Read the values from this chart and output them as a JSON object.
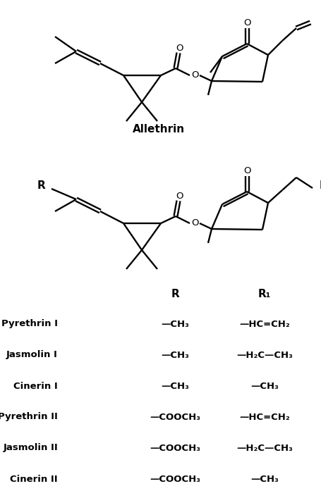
{
  "bg_color": "#ffffff",
  "compounds": [
    {
      "name": "Pyrethrin I",
      "R": "—CH₃",
      "R1": "—HC=CH₂"
    },
    {
      "name": "Jasmolin I",
      "R": "—CH₃",
      "R1": "—H₂C—CH₃"
    },
    {
      "name": "Cinerin I",
      "R": "—CH₃",
      "R1": "—CH₃"
    },
    {
      "name": "Pyrethrin II",
      "R": "—COOCH₃",
      "R1": "—HC=CH₂"
    },
    {
      "name": "Jasmolin II",
      "R": "—COOCH₃",
      "R1": "—H₂C—CH₃"
    },
    {
      "name": "Cinerin II",
      "R": "—COOCH₃",
      "R1": "—CH₃"
    }
  ],
  "allethrin_label": "Allethrin",
  "R_header": "R",
  "R1_header": "R₁"
}
